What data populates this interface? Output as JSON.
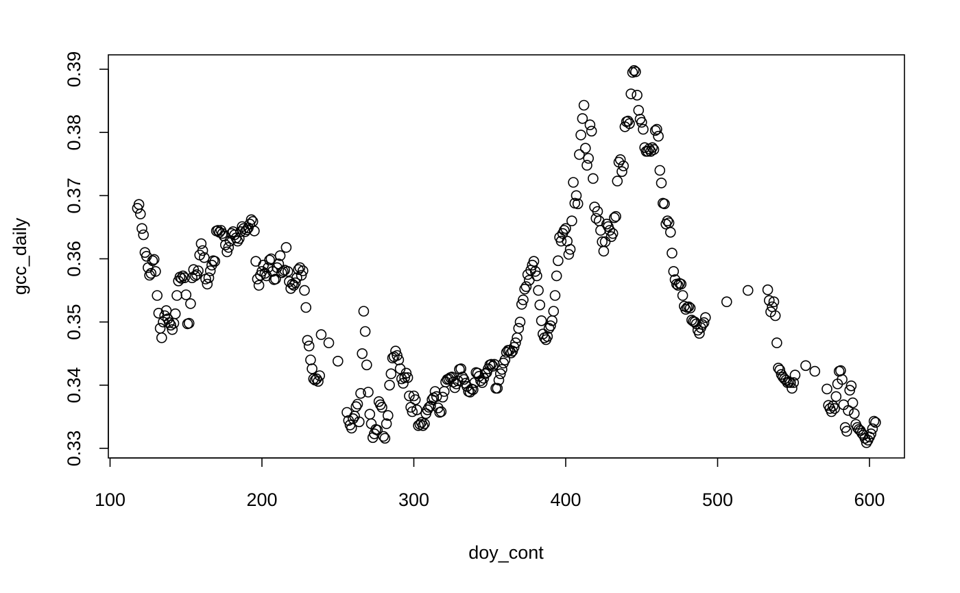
{
  "chart_data": {
    "type": "scatter",
    "title": "",
    "xlabel": "doy_cont",
    "ylabel": "gcc_daily",
    "xlim": [
      100,
      625
    ],
    "ylim": [
      0.328,
      0.3915
    ],
    "x_ticks": [
      100,
      200,
      300,
      400,
      500,
      600
    ],
    "x_tick_labels": [
      "100",
      "200",
      "300",
      "400",
      "500",
      "600"
    ],
    "y_ticks": [
      0.33,
      0.34,
      0.35,
      0.36,
      0.37,
      0.38,
      0.39
    ],
    "y_tick_labels": [
      "0.33",
      "0.34",
      "0.35",
      "0.36",
      "0.37",
      "0.38",
      "0.39"
    ],
    "marker": "open-circle",
    "grid": false,
    "points": [
      [
        118,
        0.368
      ],
      [
        119,
        0.3686
      ],
      [
        120,
        0.3671
      ],
      [
        121,
        0.3648
      ],
      [
        122,
        0.3638
      ],
      [
        123,
        0.361
      ],
      [
        124,
        0.3604
      ],
      [
        125,
        0.3586
      ],
      [
        126,
        0.3574
      ],
      [
        127,
        0.3577
      ],
      [
        128,
        0.3597
      ],
      [
        129,
        0.3599
      ],
      [
        130,
        0.358
      ],
      [
        131,
        0.3542
      ],
      [
        132,
        0.3514
      ],
      [
        133,
        0.349
      ],
      [
        134,
        0.3475
      ],
      [
        135,
        0.35
      ],
      [
        136,
        0.351
      ],
      [
        137,
        0.3518
      ],
      [
        138,
        0.3505
      ],
      [
        139,
        0.3499
      ],
      [
        140,
        0.3495
      ],
      [
        141,
        0.3488
      ],
      [
        142,
        0.3498
      ],
      [
        143,
        0.3513
      ],
      [
        144,
        0.3542
      ],
      [
        145,
        0.3565
      ],
      [
        146,
        0.3571
      ],
      [
        147,
        0.3569
      ],
      [
        148,
        0.3573
      ],
      [
        149,
        0.357
      ],
      [
        150,
        0.3543
      ],
      [
        151,
        0.3497
      ],
      [
        152,
        0.3498
      ],
      [
        153,
        0.3529
      ],
      [
        154,
        0.357
      ],
      [
        155,
        0.3583
      ],
      [
        156,
        0.3573
      ],
      [
        157,
        0.3575
      ],
      [
        158,
        0.3581
      ],
      [
        159,
        0.3606
      ],
      [
        160,
        0.3624
      ],
      [
        161,
        0.3613
      ],
      [
        162,
        0.3602
      ],
      [
        163,
        0.3568
      ],
      [
        164,
        0.356
      ],
      [
        165,
        0.357
      ],
      [
        166,
        0.3581
      ],
      [
        167,
        0.359
      ],
      [
        168,
        0.3597
      ],
      [
        169,
        0.3596
      ],
      [
        170,
        0.3644
      ],
      [
        171,
        0.3645
      ],
      [
        172,
        0.3642
      ],
      [
        173,
        0.3645
      ],
      [
        174,
        0.364
      ],
      [
        175,
        0.3636
      ],
      [
        176,
        0.3622
      ],
      [
        177,
        0.3611
      ],
      [
        178,
        0.3618
      ],
      [
        179,
        0.3628
      ],
      [
        180,
        0.364
      ],
      [
        181,
        0.3643
      ],
      [
        182,
        0.3638
      ],
      [
        183,
        0.3633
      ],
      [
        184,
        0.3628
      ],
      [
        185,
        0.3632
      ],
      [
        186,
        0.3643
      ],
      [
        187,
        0.3651
      ],
      [
        188,
        0.3648
      ],
      [
        189,
        0.3643
      ],
      [
        190,
        0.3646
      ],
      [
        191,
        0.3649
      ],
      [
        192,
        0.3655
      ],
      [
        193,
        0.3662
      ],
      [
        194,
        0.3659
      ],
      [
        195,
        0.3644
      ],
      [
        196,
        0.3596
      ],
      [
        197,
        0.3568
      ],
      [
        198,
        0.3558
      ],
      [
        199,
        0.3574
      ],
      [
        200,
        0.358
      ],
      [
        201,
        0.359
      ],
      [
        202,
        0.3577
      ],
      [
        203,
        0.3573
      ],
      [
        204,
        0.3586
      ],
      [
        205,
        0.3598
      ],
      [
        206,
        0.36
      ],
      [
        207,
        0.358
      ],
      [
        208,
        0.3567
      ],
      [
        209,
        0.3568
      ],
      [
        210,
        0.3586
      ],
      [
        211,
        0.3592
      ],
      [
        212,
        0.3605
      ],
      [
        213,
        0.3578
      ],
      [
        214,
        0.358
      ],
      [
        215,
        0.3582
      ],
      [
        216,
        0.3618
      ],
      [
        217,
        0.358
      ],
      [
        218,
        0.3564
      ],
      [
        219,
        0.3553
      ],
      [
        220,
        0.356
      ],
      [
        221,
        0.3558
      ],
      [
        222,
        0.3562
      ],
      [
        223,
        0.357
      ],
      [
        224,
        0.3583
      ],
      [
        225,
        0.3586
      ],
      [
        226,
        0.3574
      ],
      [
        227,
        0.3581
      ],
      [
        228,
        0.355
      ],
      [
        229,
        0.3523
      ],
      [
        230,
        0.3471
      ],
      [
        231,
        0.3462
      ],
      [
        232,
        0.344
      ],
      [
        233,
        0.3426
      ],
      [
        234,
        0.341
      ],
      [
        235,
        0.3408
      ],
      [
        236,
        0.341
      ],
      [
        237,
        0.3406
      ],
      [
        238,
        0.3415
      ],
      [
        239,
        0.348
      ],
      [
        244,
        0.3467
      ],
      [
        250,
        0.3438
      ],
      [
        256,
        0.3357
      ],
      [
        257,
        0.3344
      ],
      [
        258,
        0.3337
      ],
      [
        259,
        0.3332
      ],
      [
        260,
        0.3347
      ],
      [
        261,
        0.3351
      ],
      [
        262,
        0.3366
      ],
      [
        263,
        0.337
      ],
      [
        264,
        0.3342
      ],
      [
        265,
        0.3387
      ],
      [
        266,
        0.345
      ],
      [
        267,
        0.3517
      ],
      [
        268,
        0.3485
      ],
      [
        269,
        0.3432
      ],
      [
        270,
        0.3389
      ],
      [
        271,
        0.3354
      ],
      [
        272,
        0.3339
      ],
      [
        273,
        0.3317
      ],
      [
        274,
        0.3323
      ],
      [
        275,
        0.333
      ],
      [
        276,
        0.3329
      ],
      [
        277,
        0.3374
      ],
      [
        278,
        0.3369
      ],
      [
        279,
        0.3365
      ],
      [
        280,
        0.3319
      ],
      [
        281,
        0.3316
      ],
      [
        282,
        0.3339
      ],
      [
        283,
        0.3352
      ],
      [
        284,
        0.34
      ],
      [
        285,
        0.3418
      ],
      [
        286,
        0.3443
      ],
      [
        287,
        0.3445
      ],
      [
        288,
        0.3454
      ],
      [
        289,
        0.3447
      ],
      [
        290,
        0.344
      ],
      [
        291,
        0.3426
      ],
      [
        292,
        0.341
      ],
      [
        293,
        0.3403
      ],
      [
        294,
        0.3412
      ],
      [
        295,
        0.3419
      ],
      [
        296,
        0.3412
      ],
      [
        297,
        0.3383
      ],
      [
        298,
        0.3365
      ],
      [
        299,
        0.3358
      ],
      [
        300,
        0.3383
      ],
      [
        301,
        0.3377
      ],
      [
        302,
        0.3361
      ],
      [
        303,
        0.3336
      ],
      [
        304,
        0.3338
      ],
      [
        305,
        0.3341
      ],
      [
        306,
        0.3336
      ],
      [
        307,
        0.3339
      ],
      [
        308,
        0.3355
      ],
      [
        309,
        0.3361
      ],
      [
        310,
        0.3365
      ],
      [
        311,
        0.3367
      ],
      [
        312,
        0.3377
      ],
      [
        313,
        0.338
      ],
      [
        314,
        0.339
      ],
      [
        315,
        0.3382
      ],
      [
        316,
        0.3364
      ],
      [
        317,
        0.3357
      ],
      [
        318,
        0.3358
      ],
      [
        319,
        0.3381
      ],
      [
        320,
        0.339
      ],
      [
        321,
        0.3405
      ],
      [
        322,
        0.3409
      ],
      [
        323,
        0.341
      ],
      [
        324,
        0.3412
      ],
      [
        325,
        0.3413
      ],
      [
        326,
        0.3405
      ],
      [
        327,
        0.3396
      ],
      [
        328,
        0.3402
      ],
      [
        329,
        0.3407
      ],
      [
        330,
        0.3425
      ],
      [
        331,
        0.3426
      ],
      [
        332,
        0.3413
      ],
      [
        333,
        0.3409
      ],
      [
        334,
        0.3403
      ],
      [
        335,
        0.3398
      ],
      [
        336,
        0.339
      ],
      [
        337,
        0.3389
      ],
      [
        338,
        0.3394
      ],
      [
        339,
        0.3393
      ],
      [
        340,
        0.3404
      ],
      [
        341,
        0.342
      ],
      [
        342,
        0.3419
      ],
      [
        343,
        0.3414
      ],
      [
        344,
        0.3407
      ],
      [
        345,
        0.3404
      ],
      [
        346,
        0.3411
      ],
      [
        347,
        0.3418
      ],
      [
        348,
        0.342
      ],
      [
        349,
        0.3426
      ],
      [
        350,
        0.3432
      ],
      [
        351,
        0.3433
      ],
      [
        352,
        0.343
      ],
      [
        353,
        0.3433
      ],
      [
        354,
        0.3395
      ],
      [
        355,
        0.3395
      ],
      [
        356,
        0.3408
      ],
      [
        357,
        0.3418
      ],
      [
        358,
        0.3425
      ],
      [
        359,
        0.3435
      ],
      [
        360,
        0.344
      ],
      [
        361,
        0.3452
      ],
      [
        362,
        0.3455
      ],
      [
        363,
        0.3455
      ],
      [
        364,
        0.3451
      ],
      [
        365,
        0.3454
      ],
      [
        366,
        0.346
      ],
      [
        367,
        0.3467
      ],
      [
        368,
        0.3475
      ],
      [
        369,
        0.349
      ],
      [
        370,
        0.35
      ],
      [
        371,
        0.3528
      ],
      [
        372,
        0.3535
      ],
      [
        373,
        0.3552
      ],
      [
        374,
        0.3556
      ],
      [
        375,
        0.3575
      ],
      [
        376,
        0.3566
      ],
      [
        377,
        0.3582
      ],
      [
        378,
        0.359
      ],
      [
        379,
        0.3596
      ],
      [
        380,
        0.358
      ],
      [
        381,
        0.3573
      ],
      [
        382,
        0.355
      ],
      [
        383,
        0.3527
      ],
      [
        384,
        0.3502
      ],
      [
        385,
        0.3481
      ],
      [
        386,
        0.3475
      ],
      [
        387,
        0.3472
      ],
      [
        388,
        0.3477
      ],
      [
        389,
        0.349
      ],
      [
        390,
        0.3494
      ],
      [
        391,
        0.3502
      ],
      [
        392,
        0.3517
      ],
      [
        393,
        0.3542
      ],
      [
        394,
        0.3573
      ],
      [
        395,
        0.3597
      ],
      [
        396,
        0.3634
      ],
      [
        397,
        0.3628
      ],
      [
        398,
        0.364
      ],
      [
        399,
        0.3645
      ],
      [
        400,
        0.3648
      ],
      [
        401,
        0.3628
      ],
      [
        402,
        0.3607
      ],
      [
        403,
        0.3615
      ],
      [
        404,
        0.366
      ],
      [
        405,
        0.3721
      ],
      [
        406,
        0.3688
      ],
      [
        407,
        0.37
      ],
      [
        408,
        0.3687
      ],
      [
        409,
        0.3765
      ],
      [
        410,
        0.3796
      ],
      [
        411,
        0.3822
      ],
      [
        412,
        0.3843
      ],
      [
        413,
        0.3775
      ],
      [
        414,
        0.3748
      ],
      [
        415,
        0.3759
      ],
      [
        416,
        0.3812
      ],
      [
        417,
        0.3802
      ],
      [
        418,
        0.3727
      ],
      [
        419,
        0.3682
      ],
      [
        420,
        0.3664
      ],
      [
        421,
        0.3675
      ],
      [
        422,
        0.366
      ],
      [
        423,
        0.3645
      ],
      [
        424,
        0.3627
      ],
      [
        425,
        0.3612
      ],
      [
        426,
        0.3627
      ],
      [
        427,
        0.3655
      ],
      [
        428,
        0.3651
      ],
      [
        429,
        0.3645
      ],
      [
        430,
        0.3635
      ],
      [
        431,
        0.364
      ],
      [
        432,
        0.3665
      ],
      [
        433,
        0.3667
      ],
      [
        434,
        0.3723
      ],
      [
        435,
        0.3753
      ],
      [
        436,
        0.3757
      ],
      [
        437,
        0.3738
      ],
      [
        438,
        0.3747
      ],
      [
        439,
        0.3809
      ],
      [
        440,
        0.3817
      ],
      [
        441,
        0.3818
      ],
      [
        442,
        0.3814
      ],
      [
        443,
        0.3861
      ],
      [
        444,
        0.3895
      ],
      [
        445,
        0.3898
      ],
      [
        446,
        0.3896
      ],
      [
        447,
        0.3859
      ],
      [
        448,
        0.3835
      ],
      [
        449,
        0.3821
      ],
      [
        450,
        0.3816
      ],
      [
        451,
        0.3805
      ],
      [
        452,
        0.3776
      ],
      [
        453,
        0.377
      ],
      [
        454,
        0.377
      ],
      [
        455,
        0.3774
      ],
      [
        456,
        0.377
      ],
      [
        457,
        0.3776
      ],
      [
        458,
        0.3773
      ],
      [
        459,
        0.3803
      ],
      [
        460,
        0.3805
      ],
      [
        461,
        0.3794
      ],
      [
        462,
        0.374
      ],
      [
        463,
        0.372
      ],
      [
        464,
        0.3688
      ],
      [
        465,
        0.3687
      ],
      [
        466,
        0.3655
      ],
      [
        467,
        0.366
      ],
      [
        468,
        0.3657
      ],
      [
        469,
        0.3642
      ],
      [
        470,
        0.3609
      ],
      [
        471,
        0.358
      ],
      [
        472,
        0.3567
      ],
      [
        473,
        0.356
      ],
      [
        474,
        0.3558
      ],
      [
        475,
        0.3561
      ],
      [
        476,
        0.356
      ],
      [
        477,
        0.3542
      ],
      [
        478,
        0.3525
      ],
      [
        479,
        0.352
      ],
      [
        480,
        0.3523
      ],
      [
        481,
        0.3524
      ],
      [
        482,
        0.3522
      ],
      [
        483,
        0.3503
      ],
      [
        484,
        0.3501
      ],
      [
        485,
        0.35
      ],
      [
        486,
        0.3497
      ],
      [
        487,
        0.3487
      ],
      [
        488,
        0.3482
      ],
      [
        489,
        0.3491
      ],
      [
        490,
        0.3496
      ],
      [
        491,
        0.3499
      ],
      [
        492,
        0.3507
      ],
      [
        506,
        0.3532
      ],
      [
        520,
        0.355
      ],
      [
        533,
        0.3551
      ],
      [
        534,
        0.3534
      ],
      [
        535,
        0.3516
      ],
      [
        536,
        0.3524
      ],
      [
        537,
        0.3532
      ],
      [
        538,
        0.351
      ],
      [
        539,
        0.3467
      ],
      [
        540,
        0.3427
      ],
      [
        541,
        0.3424
      ],
      [
        542,
        0.3417
      ],
      [
        543,
        0.3413
      ],
      [
        544,
        0.341
      ],
      [
        545,
        0.3408
      ],
      [
        546,
        0.3404
      ],
      [
        547,
        0.3405
      ],
      [
        548,
        0.3404
      ],
      [
        549,
        0.3395
      ],
      [
        550,
        0.3404
      ],
      [
        551,
        0.3416
      ],
      [
        558,
        0.3431
      ],
      [
        564,
        0.3422
      ],
      [
        572,
        0.3394
      ],
      [
        573,
        0.3368
      ],
      [
        574,
        0.3363
      ],
      [
        575,
        0.3358
      ],
      [
        576,
        0.3367
      ],
      [
        577,
        0.3363
      ],
      [
        578,
        0.3382
      ],
      [
        579,
        0.3402
      ],
      [
        580,
        0.3422
      ],
      [
        581,
        0.3423
      ],
      [
        582,
        0.3409
      ],
      [
        583,
        0.3369
      ],
      [
        584,
        0.3333
      ],
      [
        585,
        0.3327
      ],
      [
        586,
        0.336
      ],
      [
        587,
        0.3392
      ],
      [
        588,
        0.3399
      ],
      [
        589,
        0.3372
      ],
      [
        590,
        0.3355
      ],
      [
        591,
        0.3338
      ],
      [
        592,
        0.3333
      ],
      [
        593,
        0.333
      ],
      [
        594,
        0.3328
      ],
      [
        595,
        0.3324
      ],
      [
        596,
        0.3321
      ],
      [
        597,
        0.3316
      ],
      [
        598,
        0.3309
      ],
      [
        599,
        0.3313
      ],
      [
        600,
        0.3318
      ],
      [
        601,
        0.3323
      ],
      [
        602,
        0.3331
      ],
      [
        603,
        0.3343
      ],
      [
        604,
        0.3341
      ]
    ]
  }
}
